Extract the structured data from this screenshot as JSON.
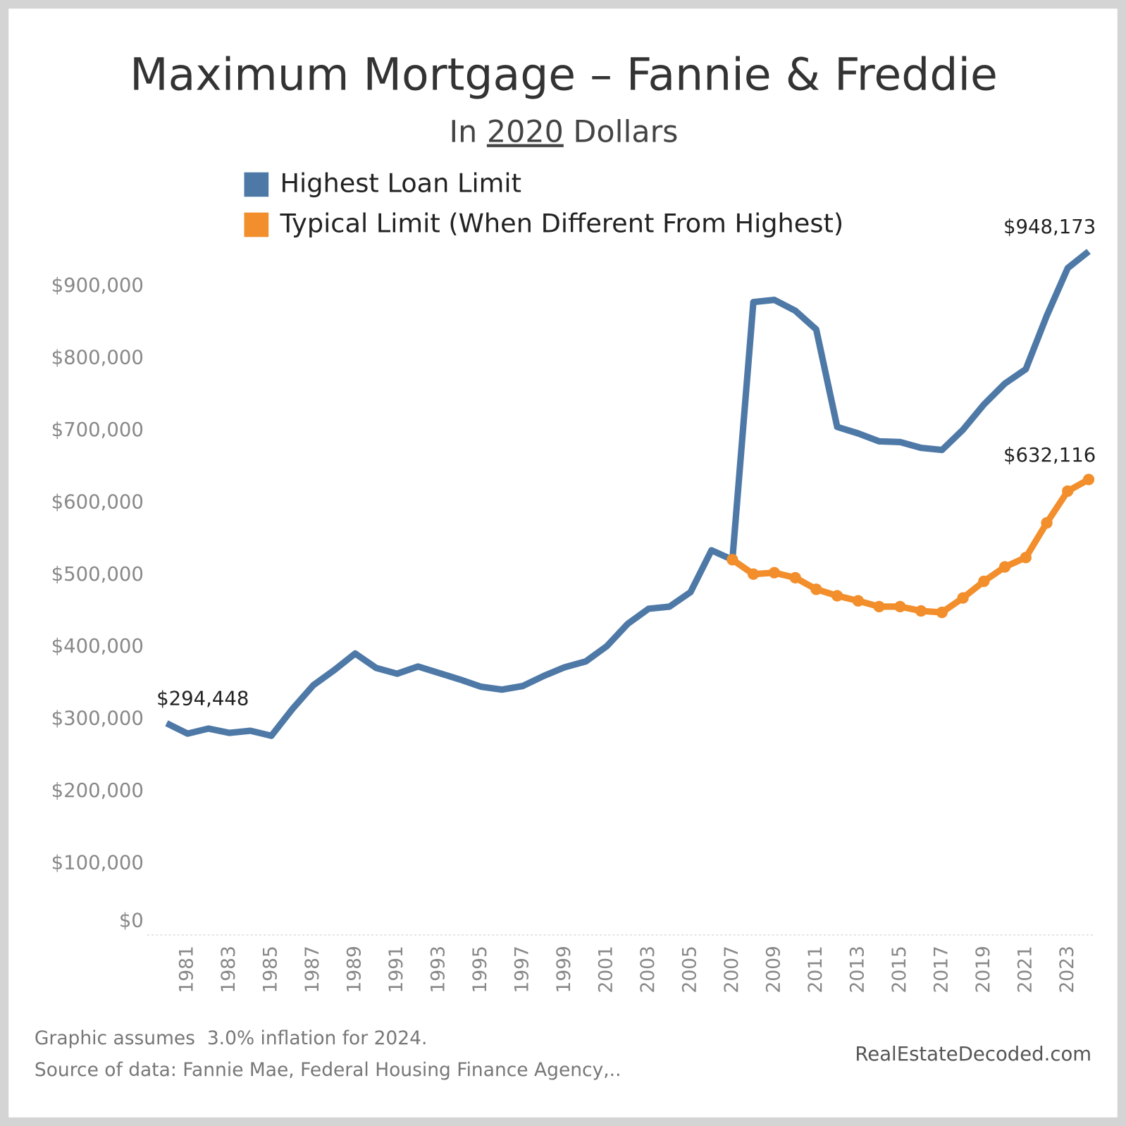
{
  "chart_data": {
    "type": "line",
    "title": "Maximum Mortgage – Fannie & Freddie",
    "subtitle": [
      "In ",
      "2020",
      " Dollars"
    ],
    "x": [
      1980,
      1981,
      1982,
      1983,
      1984,
      1985,
      1986,
      1987,
      1988,
      1989,
      1990,
      1991,
      1992,
      1993,
      1994,
      1995,
      1996,
      1997,
      1998,
      1999,
      2000,
      2001,
      2002,
      2003,
      2004,
      2005,
      2006,
      2007,
      2008,
      2009,
      2010,
      2011,
      2012,
      2013,
      2014,
      2015,
      2016,
      2017,
      2018,
      2019,
      2020,
      2021,
      2022,
      2023,
      2024
    ],
    "xlim": [
      1980,
      2024
    ],
    "xticks": [
      1981,
      1983,
      1985,
      1987,
      1989,
      1991,
      1993,
      1995,
      1997,
      1999,
      2001,
      2003,
      2005,
      2007,
      2009,
      2011,
      2013,
      2015,
      2017,
      2019,
      2021,
      2023
    ],
    "series": [
      {
        "name": "Highest Loan Limit",
        "color": "#4e79a7",
        "markers": false,
        "values": [
          294448,
          280000,
          287000,
          281000,
          284000,
          277000,
          314000,
          347000,
          368000,
          391000,
          371000,
          363000,
          373000,
          364000,
          355000,
          345000,
          341000,
          346000,
          360000,
          372000,
          380000,
          401000,
          432000,
          453000,
          456000,
          476000,
          534000,
          521000,
          878000,
          881000,
          866000,
          840000,
          705000,
          696000,
          685000,
          684000,
          676000,
          673000,
          701000,
          736000,
          765000,
          785000,
          859000,
          925000,
          948173
        ],
        "value_labels": [
          "$294,448",
          null,
          null,
          null,
          null,
          null,
          null,
          null,
          null,
          null,
          null,
          null,
          null,
          null,
          null,
          null,
          null,
          null,
          null,
          null,
          null,
          null,
          null,
          null,
          null,
          null,
          null,
          null,
          null,
          null,
          null,
          null,
          null,
          null,
          null,
          null,
          null,
          null,
          null,
          null,
          null,
          null,
          null,
          null,
          "$948,173"
        ]
      },
      {
        "name": "Typical Limit (When Different From Highest)",
        "color": "#f28e2b",
        "markers": true,
        "values": [
          null,
          null,
          null,
          null,
          null,
          null,
          null,
          null,
          null,
          null,
          null,
          null,
          null,
          null,
          null,
          null,
          null,
          null,
          null,
          null,
          null,
          null,
          null,
          null,
          null,
          null,
          null,
          521000,
          501000,
          503000,
          496000,
          480000,
          471000,
          464000,
          456000,
          456000,
          450000,
          448000,
          468000,
          491000,
          511000,
          524000,
          572000,
          616000,
          632116
        ],
        "value_labels": [
          null,
          null,
          null,
          null,
          null,
          null,
          null,
          null,
          null,
          null,
          null,
          null,
          null,
          null,
          null,
          null,
          null,
          null,
          null,
          null,
          null,
          null,
          null,
          null,
          null,
          null,
          null,
          null,
          null,
          null,
          null,
          null,
          null,
          null,
          null,
          null,
          null,
          null,
          null,
          null,
          null,
          null,
          null,
          null,
          "$632,116"
        ]
      }
    ],
    "ylim": [
      0,
      1000000
    ],
    "yticks": [
      {
        "value": 0,
        "label": "$0"
      },
      {
        "value": 100000,
        "label": "$100,000"
      },
      {
        "value": 200000,
        "label": "$200,000"
      },
      {
        "value": 300000,
        "label": "$300,000"
      },
      {
        "value": 400000,
        "label": "$400,000"
      },
      {
        "value": 500000,
        "label": "$500,000"
      },
      {
        "value": 600000,
        "label": "$600,000"
      },
      {
        "value": 700000,
        "label": "$700,000"
      },
      {
        "value": 800000,
        "label": "$800,000"
      },
      {
        "value": 900000,
        "label": "$900,000"
      }
    ],
    "grid": false,
    "notes": [
      "Graphic assumes  3.0% inflation for 2024.",
      "Source of data: Fannie Mae, Federal Housing Finance Agency,.."
    ],
    "credit": "RealEstateDecoded.com"
  }
}
